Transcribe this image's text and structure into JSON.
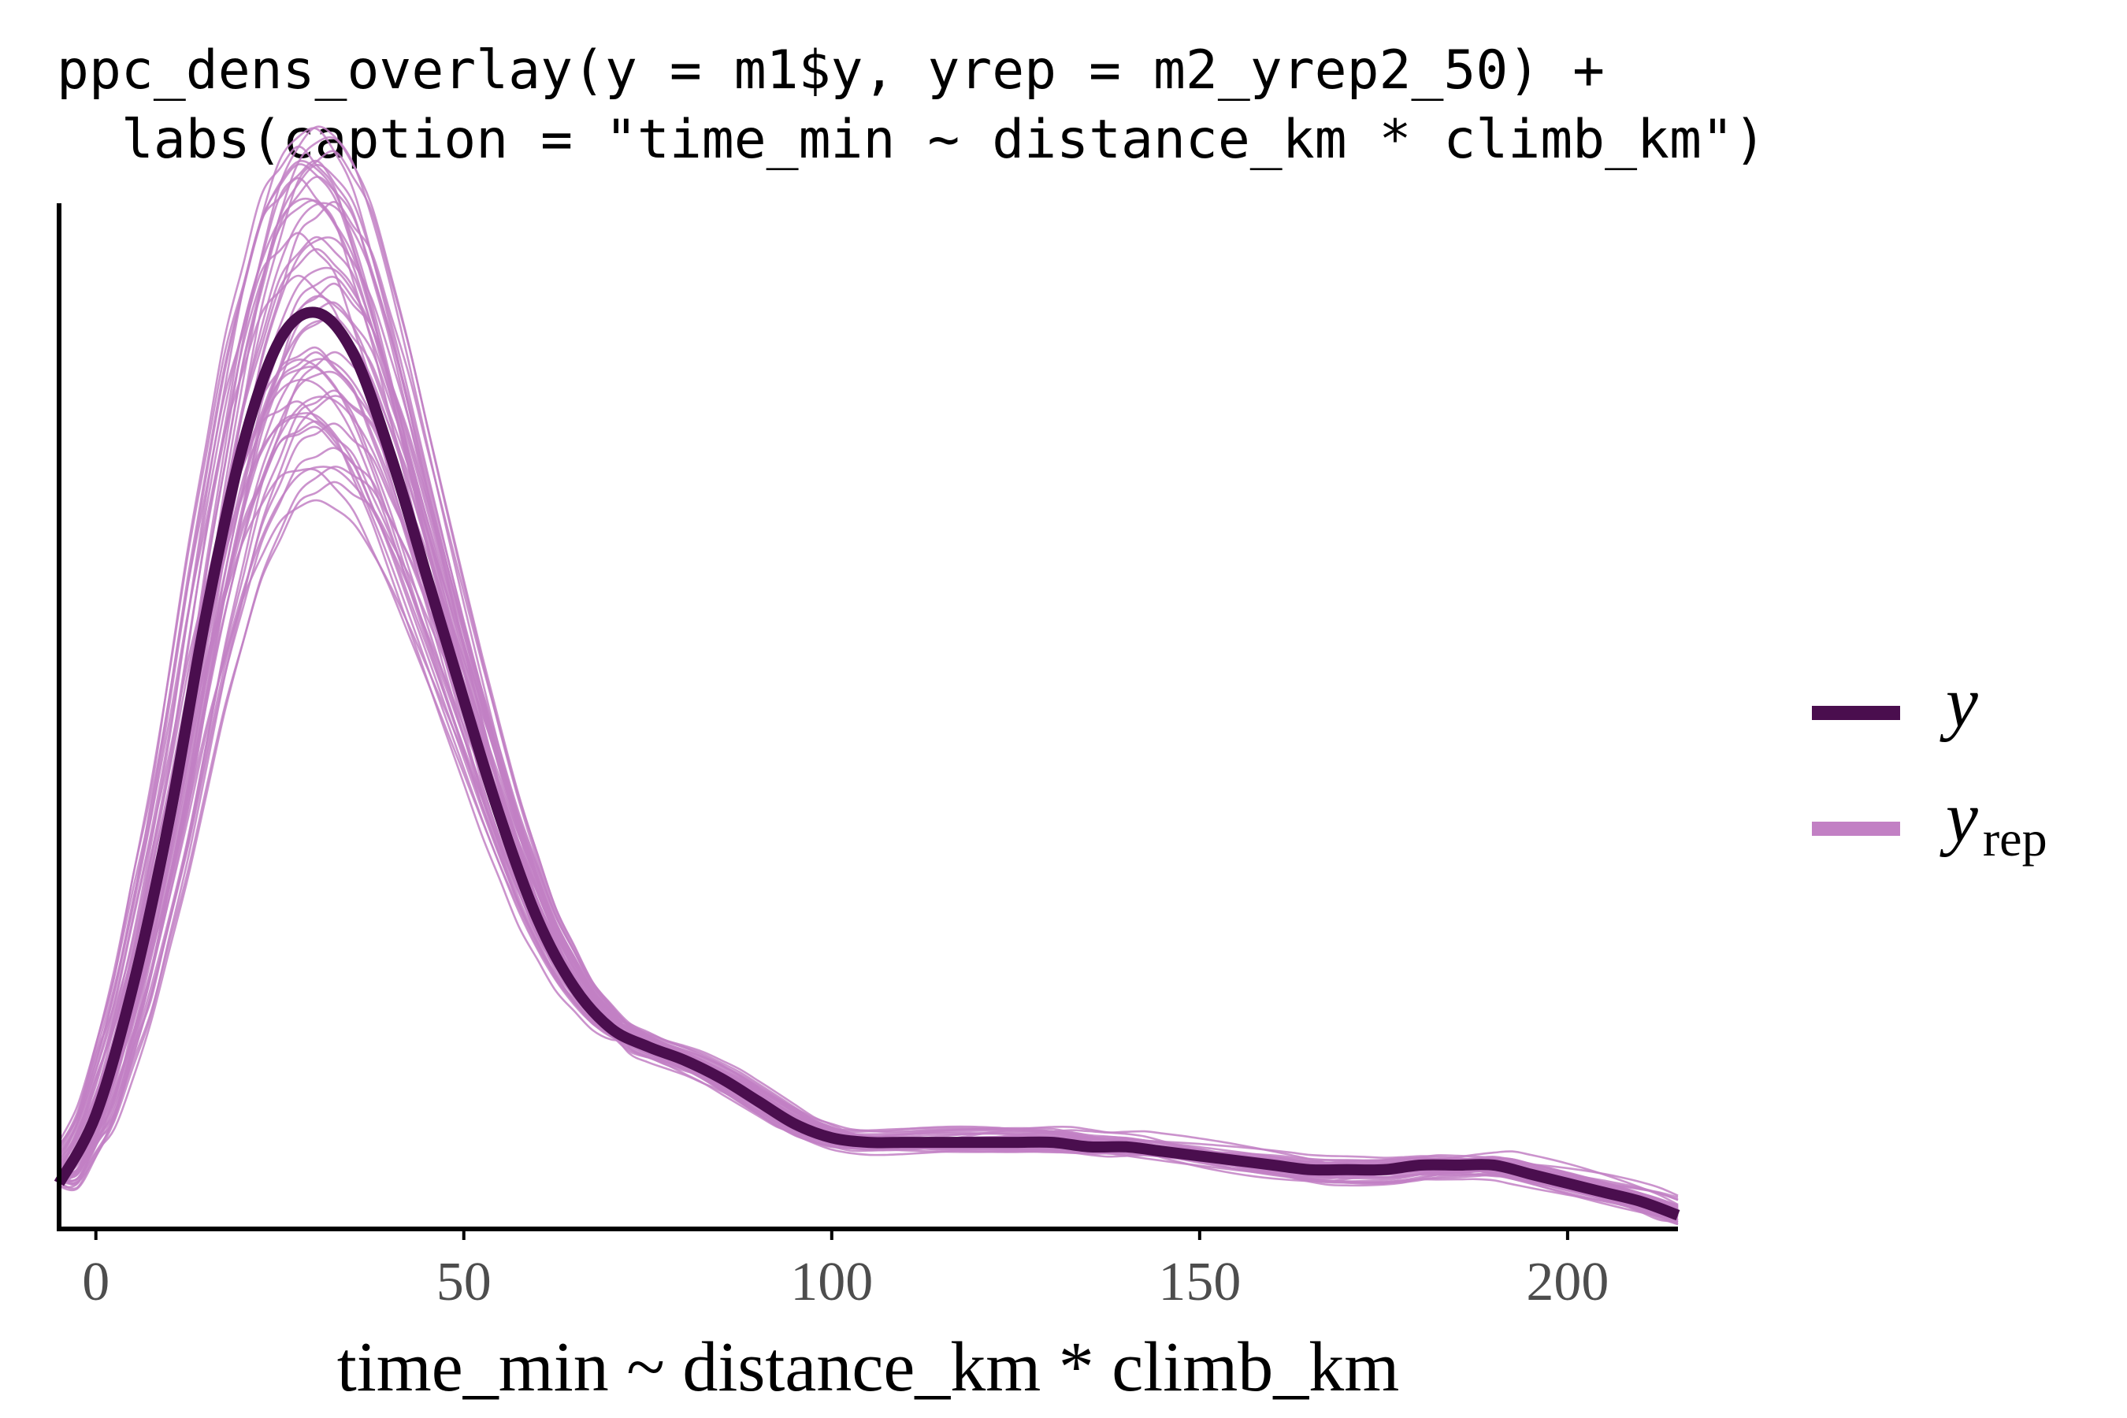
{
  "code_title": {
    "line1": "ppc_dens_overlay(y = m1$y, yrep = m2_yrep2_50) +",
    "line2": "  labs(caption = \"time_min ~ distance_km * climb_km\")"
  },
  "chart_data": {
    "type": "line",
    "xlabel": "time_min ~ distance_km * climb_km",
    "ylabel": "",
    "xlim": [
      -5,
      215
    ],
    "ylim": [
      0,
      0.0225
    ],
    "x_ticks": [
      "0",
      "50",
      "100",
      "150",
      "200"
    ],
    "grid": false,
    "legend_position": "right",
    "legend": {
      "y": {
        "main": "y",
        "sub": ""
      },
      "yrep": {
        "main": "y",
        "sub": "rep"
      }
    },
    "colors": {
      "y": "#4a0e4e",
      "yrep": "#c280c4"
    },
    "yrep_draws": 50,
    "series": [
      {
        "name": "y",
        "x": [
          -5,
          0,
          5,
          10,
          15,
          20,
          25,
          30,
          35,
          40,
          45,
          50,
          55,
          60,
          65,
          70,
          75,
          80,
          85,
          90,
          95,
          100,
          105,
          110,
          115,
          120,
          125,
          130,
          135,
          140,
          145,
          150,
          155,
          160,
          165,
          170,
          175,
          180,
          185,
          190,
          195,
          200,
          205,
          210,
          215
        ],
        "values": [
          0.001,
          0.0025,
          0.0053,
          0.009,
          0.0135,
          0.0172,
          0.0195,
          0.0201,
          0.0192,
          0.017,
          0.0143,
          0.0116,
          0.009,
          0.0068,
          0.0053,
          0.0044,
          0.004,
          0.0037,
          0.0033,
          0.0028,
          0.0023,
          0.002,
          0.0019,
          0.0019,
          0.0019,
          0.0019,
          0.0019,
          0.0019,
          0.0018,
          0.0018,
          0.0017,
          0.0016,
          0.0015,
          0.0014,
          0.0013,
          0.0013,
          0.0013,
          0.0014,
          0.0014,
          0.0014,
          0.0012,
          0.001,
          0.0008,
          0.0006,
          0.0003
        ]
      }
    ]
  }
}
